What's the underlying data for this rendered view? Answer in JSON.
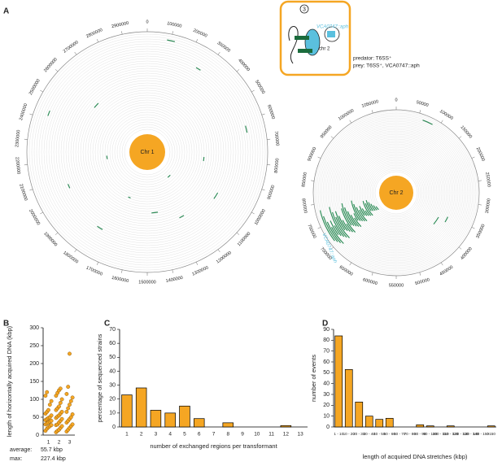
{
  "panel_labels": [
    "A",
    "B",
    "C",
    "D"
  ],
  "panel_a": {
    "chr1": {
      "label": "Chr 1",
      "ticks": [
        0,
        100000,
        200000,
        300000,
        400000,
        500000,
        600000,
        700000,
        800000,
        900000,
        1000000,
        1100000,
        1200000,
        1300000,
        1400000,
        1500000,
        1600000,
        1700000,
        1800000,
        1900000,
        2000000,
        2100000,
        2200000,
        2300000,
        2400000,
        2500000,
        2600000,
        2700000,
        2800000,
        2900000
      ]
    },
    "chr2": {
      "label": "Chr 2",
      "ticks": [
        0,
        50000,
        100000,
        150000,
        200000,
        250000,
        300000,
        350000,
        400000,
        450000,
        500000,
        550000,
        600000,
        650000,
        700000,
        750000,
        800000,
        850000,
        900000,
        950000,
        1000000,
        1050000
      ],
      "locus_label": "VCA0747::aph"
    },
    "inset": {
      "number": "3",
      "gene": "VCA0747::aph",
      "chromosome": "chr 2",
      "predator": "predator: T6SS⁺",
      "prey": "prey: T6SS⁺, VCA0747::aph"
    }
  },
  "chart_data": [
    {
      "type": "strip",
      "ylabel": "length of horizontally acquired DNA (kbp)",
      "categories": [
        "1",
        "2",
        "3"
      ],
      "color": "#f5a623",
      "groups": [
        [
          12,
          18,
          22,
          25,
          28,
          30,
          33,
          35,
          38,
          40,
          42,
          45,
          48,
          50,
          55,
          60,
          65,
          70,
          85,
          95,
          110,
          120
        ],
        [
          8,
          12,
          15,
          20,
          25,
          28,
          30,
          35,
          40,
          45,
          48,
          52,
          55,
          60,
          65,
          70,
          75,
          80,
          90,
          100,
          110,
          118,
          125,
          130
        ],
        [
          10,
          15,
          20,
          25,
          30,
          35,
          40,
          45,
          50,
          58,
          65,
          75,
          85,
          95,
          105,
          115,
          135,
          227.4
        ]
      ],
      "ylim": [
        0,
        300
      ],
      "yticks": [
        0,
        50,
        100,
        150,
        200,
        250,
        300
      ],
      "summary": [
        {
          "label": "average:",
          "value": "55.7 kbp"
        },
        {
          "label": "max:",
          "value": "227.4 kbp"
        }
      ]
    },
    {
      "type": "bar",
      "xlabel": "number of exchanged regions per transformant",
      "ylabel": "percentage of sequenced strains",
      "color": "#f5a623",
      "categories": [
        "1",
        "2",
        "3",
        "4",
        "5",
        "6",
        "7",
        "8",
        "9",
        "10",
        "11",
        "12",
        "13"
      ],
      "values": [
        23,
        28,
        12,
        10,
        15,
        6,
        0,
        3,
        0,
        0,
        0,
        1,
        0
      ],
      "ylim": [
        0,
        70
      ],
      "yticks": [
        0,
        10,
        20,
        30,
        40,
        50,
        60,
        70
      ]
    },
    {
      "type": "bar",
      "xlabel": "length of acquired DNA stretches (kbp)",
      "ylabel": "number of events",
      "color": "#f5a623",
      "categories": [
        "1 - 10",
        "10 - 20",
        "20 - 30",
        "30 - 40",
        "40 - 50",
        "50 - 60",
        "60 - 70",
        "70 - 80",
        "80 - 90",
        "90 - 100",
        "100 - 110",
        "110 - 120",
        "120 - 130",
        "130 - 140",
        "140 - 150",
        ">150"
      ],
      "values": [
        84,
        53,
        23,
        10,
        7,
        8,
        0,
        0,
        2,
        1,
        0,
        1,
        0,
        0,
        0,
        1
      ],
      "ylim": [
        0,
        90
      ],
      "yticks": [
        0,
        10,
        20,
        30,
        40,
        50,
        60,
        70,
        80,
        90
      ]
    }
  ]
}
